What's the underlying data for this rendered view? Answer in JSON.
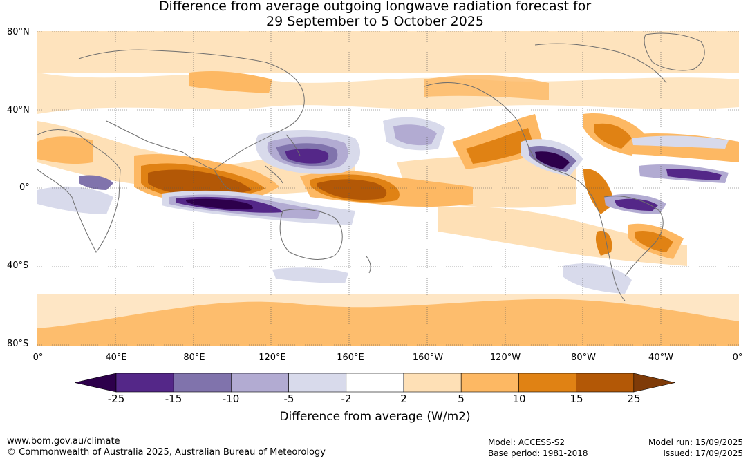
{
  "title": {
    "line1": "Difference from average outgoing longwave radiation forecast for",
    "line2": "29 September to 5 October 2025"
  },
  "map": {
    "lat_labels": [
      "80°N",
      "40°N",
      "0°",
      "40°S",
      "80°S"
    ],
    "lon_labels": [
      "0°",
      "40°E",
      "80°E",
      "120°E",
      "160°E",
      "160°W",
      "120°W",
      "80°W",
      "40°W",
      "0°"
    ]
  },
  "colorbar": {
    "ticks": [
      "-25",
      "-15",
      "-10",
      "-5",
      "-2",
      "2",
      "5",
      "10",
      "15",
      "25"
    ],
    "colors": [
      "#2d004b",
      "#542788",
      "#8073ac",
      "#b2abd2",
      "#d8daeb",
      "#ffffff",
      "#fee0b6",
      "#fdb863",
      "#e08214",
      "#b35806",
      "#7f3b08"
    ],
    "label": "Difference from average (W/m2)"
  },
  "footer": {
    "url": "www.bom.gov.au/climate",
    "copyright": "© Commonwealth of Australia 2025, Australian Bureau of Meteorology",
    "model": "Model: ACCESS-S2",
    "base_period": "Base period: 1981-2018",
    "model_run": "Model run: 15/09/2025",
    "issued": "Issued: 17/09/2025"
  }
}
